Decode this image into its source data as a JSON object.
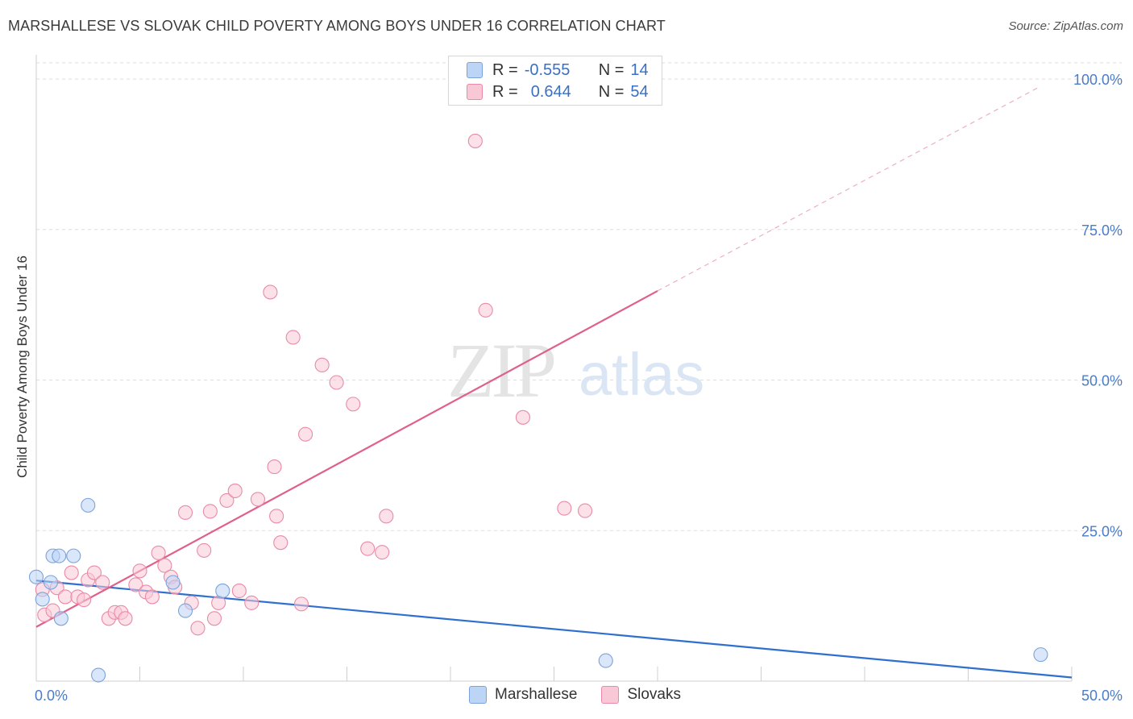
{
  "title": "MARSHALLESE VS SLOVAK CHILD POVERTY AMONG BOYS UNDER 16 CORRELATION CHART",
  "source": "Source: ZipAtlas.com",
  "watermark": {
    "zip": "ZIP",
    "atlas": "atlas"
  },
  "legend_stats": [
    {
      "r_label": "R =",
      "r_value": "-0.555",
      "n_label": "N =",
      "n_value": "14",
      "color": "#bcd4f5"
    },
    {
      "r_label": "R =",
      "r_value": "0.644",
      "n_label": "N =",
      "n_value": "54",
      "color": "#f9c8d6"
    }
  ],
  "chart_data": {
    "type": "scatter",
    "ylabel": "Child Poverty Among Boys Under 16",
    "x_tick_labels": [
      "0.0%",
      "50.0%"
    ],
    "y_tick_labels": [
      "25.0%",
      "50.0%",
      "75.0%",
      "100.0%"
    ],
    "xlim": [
      0,
      50
    ],
    "ylim": [
      0,
      100
    ],
    "grid": true,
    "legend_position": "bottom",
    "series": [
      {
        "name": "Marshallese",
        "color": "#7aa3db",
        "fill": "#bcd4f5",
        "trend_color": "#2f6fcf",
        "trend": {
          "x0": 0,
          "y0": 16.7,
          "x1": 50,
          "y1": 0.6
        },
        "points": [
          [
            0.0,
            17.3
          ],
          [
            0.3,
            13.6
          ],
          [
            0.7,
            16.4
          ],
          [
            0.8,
            20.8
          ],
          [
            1.1,
            20.8
          ],
          [
            1.2,
            10.4
          ],
          [
            1.8,
            20.8
          ],
          [
            2.5,
            29.2
          ],
          [
            3.0,
            1.0
          ],
          [
            6.6,
            16.4
          ],
          [
            7.2,
            11.7
          ],
          [
            9.0,
            15.0
          ],
          [
            27.5,
            3.4
          ],
          [
            48.5,
            4.4
          ]
        ]
      },
      {
        "name": "Slovaks",
        "color": "#e98aa8",
        "fill": "#f9c8d6",
        "trend_color": "#e0608a",
        "trend": {
          "x0": 0,
          "y0": 9.0,
          "x1": 30,
          "y1": 64.8
        },
        "trend_dashed_to": {
          "x": 48.5,
          "y": 98.8
        },
        "points": [
          [
            0.3,
            15.2
          ],
          [
            0.4,
            11.0
          ],
          [
            0.8,
            11.7
          ],
          [
            1.0,
            15.5
          ],
          [
            1.4,
            14.0
          ],
          [
            1.7,
            18.0
          ],
          [
            2.0,
            14.0
          ],
          [
            2.3,
            13.5
          ],
          [
            2.5,
            16.8
          ],
          [
            2.8,
            18.0
          ],
          [
            3.2,
            16.4
          ],
          [
            3.5,
            10.4
          ],
          [
            3.8,
            11.4
          ],
          [
            4.1,
            11.4
          ],
          [
            4.3,
            10.4
          ],
          [
            4.8,
            16.0
          ],
          [
            5.0,
            18.3
          ],
          [
            5.3,
            14.8
          ],
          [
            5.6,
            14.0
          ],
          [
            5.9,
            21.3
          ],
          [
            6.2,
            19.2
          ],
          [
            6.5,
            17.3
          ],
          [
            6.7,
            15.6
          ],
          [
            7.2,
            28.0
          ],
          [
            7.5,
            13.0
          ],
          [
            7.8,
            8.8
          ],
          [
            8.1,
            21.7
          ],
          [
            8.4,
            28.2
          ],
          [
            8.6,
            10.4
          ],
          [
            8.8,
            13.0
          ],
          [
            9.2,
            30.0
          ],
          [
            9.6,
            31.6
          ],
          [
            9.8,
            15.0
          ],
          [
            10.4,
            13.0
          ],
          [
            10.7,
            30.2
          ],
          [
            11.3,
            64.6
          ],
          [
            11.5,
            35.6
          ],
          [
            11.6,
            27.4
          ],
          [
            11.8,
            23.0
          ],
          [
            12.4,
            57.1
          ],
          [
            12.8,
            12.8
          ],
          [
            13.0,
            41.0
          ],
          [
            13.8,
            52.5
          ],
          [
            14.5,
            49.6
          ],
          [
            15.3,
            46.0
          ],
          [
            16.0,
            22.0
          ],
          [
            16.7,
            21.4
          ],
          [
            16.9,
            27.4
          ],
          [
            20.5,
            99.0
          ],
          [
            21.2,
            89.7
          ],
          [
            21.7,
            61.6
          ],
          [
            23.5,
            43.8
          ],
          [
            25.5,
            28.7
          ],
          [
            26.5,
            28.3
          ]
        ]
      }
    ]
  }
}
